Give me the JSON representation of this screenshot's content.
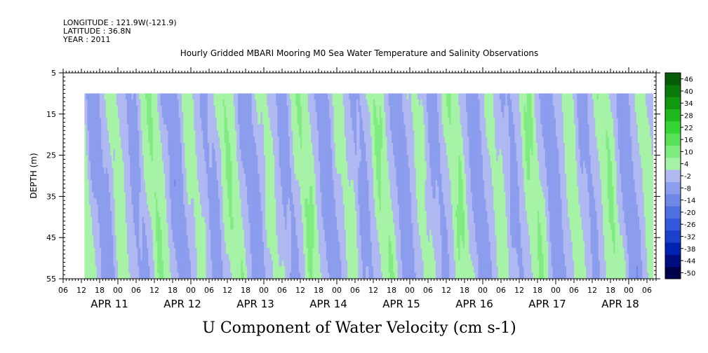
{
  "header": {
    "longitude": "LONGITUDE : 121.9W(-121.9)",
    "latitude": "LATITUDE : 36.8N",
    "year": "YEAR : 2011"
  },
  "chart_data": {
    "type": "heatmap",
    "title": "Hourly Gridded MBARI Mooring M0 Sea Water Temperature and Salinity Observations",
    "bottom_title": "U Component of Water Velocity (cm s-1)",
    "ylabel": "DEPTH (m)",
    "y_range": [
      5,
      55
    ],
    "y_inverted": true,
    "y_ticks": [
      5,
      15,
      25,
      35,
      45,
      55
    ],
    "x_range": [
      "2011-04-10T06:00",
      "2011-04-18T09:00"
    ],
    "data_x_range": [
      "2011-04-10T13:00",
      "2011-04-18T08:00"
    ],
    "data_depth_range": [
      10,
      55
    ],
    "x_hour_ticks": [
      "06",
      "12",
      "18",
      "00",
      "06",
      "12",
      "18",
      "00",
      "06",
      "12",
      "18",
      "00",
      "06",
      "12",
      "18",
      "00",
      "06",
      "12",
      "18",
      "00",
      "06",
      "12",
      "18",
      "00",
      "06",
      "12",
      "18",
      "00",
      "06",
      "12",
      "18",
      "00",
      "06"
    ],
    "x_date_labels": [
      "APR 11",
      "APR 12",
      "APR 13",
      "APR 14",
      "APR 15",
      "APR 16",
      "APR 17",
      "APR 18"
    ],
    "colorbar": {
      "levels": [
        -50,
        -44,
        -38,
        -32,
        -26,
        -20,
        -14,
        -8,
        -2,
        4,
        10,
        16,
        22,
        28,
        34,
        40,
        46
      ],
      "min": -50,
      "max": 50,
      "colors": [
        "#00004d",
        "#000d80",
        "#0022b3",
        "#1a40cc",
        "#3358d9",
        "#4d6fe0",
        "#6f88e6",
        "#8c9ded",
        "#b0b8f2",
        "#a6f2a6",
        "#80eb80",
        "#59e059",
        "#33d633",
        "#1fb81f",
        "#129912",
        "#0a7a0a",
        "#065c06"
      ]
    },
    "value_bands": {
      "strong_positive": [
        10,
        16
      ],
      "positive": [
        4,
        10
      ],
      "weak_positive": [
        -2,
        4
      ],
      "negative": [
        -8,
        -2
      ],
      "strong_negative": [
        -14,
        -8
      ]
    }
  }
}
